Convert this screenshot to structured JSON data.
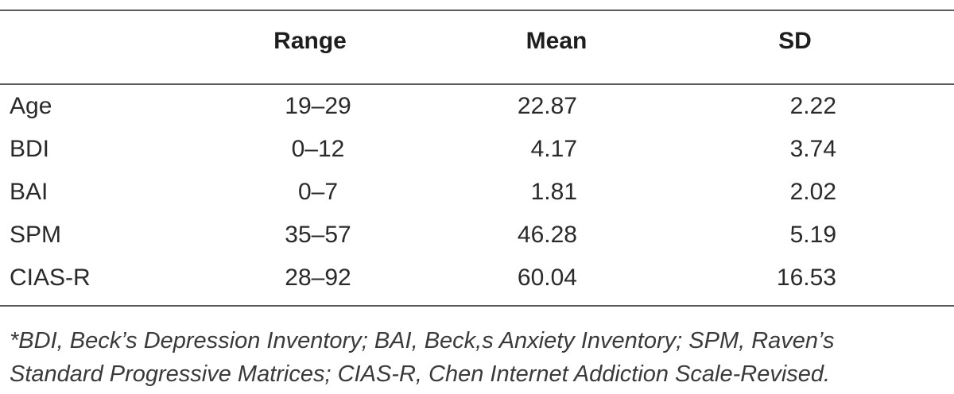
{
  "table": {
    "headers": {
      "label": "",
      "range": "Range",
      "mean": "Mean",
      "sd": "SD"
    },
    "rows": [
      {
        "label": "Age",
        "range": "19–29",
        "mean": "22.87",
        "sd": "2.22"
      },
      {
        "label": "BDI",
        "range": "0–12",
        "mean": "4.17",
        "sd": "3.74"
      },
      {
        "label": "BAI",
        "range": "0–7",
        "mean": "1.81",
        "sd": "2.02"
      },
      {
        "label": "SPM",
        "range": "35–57",
        "mean": "46.28",
        "sd": "5.19"
      },
      {
        "label": "CIAS-R",
        "range": "28–92",
        "mean": "60.04",
        "sd": "16.53"
      }
    ]
  },
  "footnote": {
    "line1": "*BDI, Beck’s Depression Inventory; BAI, Beck,s Anxiety Inventory; SPM, Raven’s",
    "line2": "Standard Progressive Matrices; CIAS-R, Chen Internet Addiction Scale-Revised."
  }
}
